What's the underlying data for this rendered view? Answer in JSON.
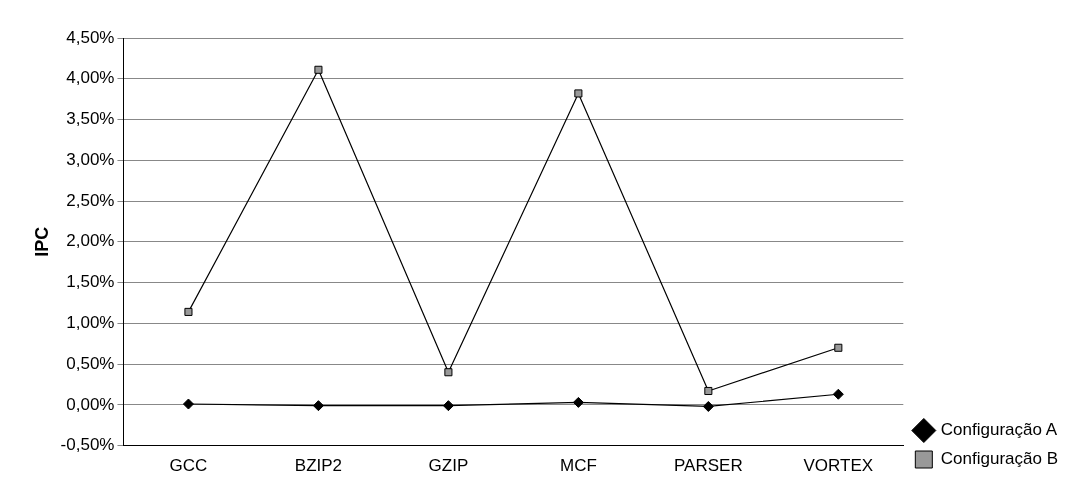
{
  "chart_data": {
    "type": "line",
    "ylabel": "IPC",
    "categories": [
      "GCC",
      "BZIP2",
      "GZIP",
      "MCF",
      "PARSER",
      "VORTEX"
    ],
    "series": [
      {
        "name": "Configuração A",
        "color": "#000000",
        "marker": "diamond",
        "values": [
          0.01,
          -0.01,
          -0.01,
          0.03,
          -0.02,
          0.13
        ]
      },
      {
        "name": "Configuração B",
        "color": "#000000",
        "marker": "square",
        "values": [
          1.14,
          4.11,
          0.4,
          3.82,
          0.17,
          0.7
        ]
      }
    ],
    "ylim": [
      -0.5,
      4.5
    ],
    "yticks": [
      {
        "value": -0.5,
        "label": "-0,50%"
      },
      {
        "value": 0,
        "label": "0,00%"
      },
      {
        "value": 0.5,
        "label": "0,50%"
      },
      {
        "value": 1,
        "label": "1,00%"
      },
      {
        "value": 1.5,
        "label": "1,50%"
      },
      {
        "value": 2,
        "label": "2,00%"
      },
      {
        "value": 2.5,
        "label": "2,50%"
      },
      {
        "value": 3,
        "label": "3,00%"
      },
      {
        "value": 3.5,
        "label": "3,50%"
      },
      {
        "value": 4,
        "label": "4,00%"
      },
      {
        "value": 4.5,
        "label": "4,50%"
      }
    ],
    "grid": "y",
    "legend": "bottom right",
    "line_style": "solid"
  }
}
